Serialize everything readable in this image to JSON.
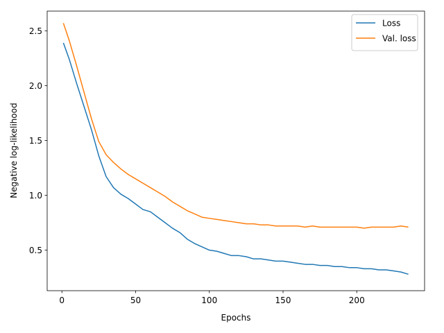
{
  "chart_data": {
    "type": "line",
    "title": "",
    "xlabel": "Epochs",
    "ylabel": "Negative log-likelihood",
    "xlim": [
      -10,
      246
    ],
    "ylim": [
      0.13,
      2.68
    ],
    "xticks": [
      0,
      50,
      100,
      150,
      200
    ],
    "yticks": [
      0.5,
      1.0,
      1.5,
      2.0,
      2.5
    ],
    "xtick_labels": [
      "0",
      "50",
      "100",
      "150",
      "200"
    ],
    "ytick_labels": [
      "0.5",
      "1.0",
      "1.5",
      "2.0",
      "2.5"
    ],
    "grid": false,
    "legend_position": "top-right",
    "series": [
      {
        "name": "Loss",
        "color": "#1f77b4",
        "x": [
          1,
          5,
          10,
          15,
          20,
          25,
          30,
          35,
          40,
          45,
          50,
          55,
          60,
          65,
          70,
          75,
          80,
          85,
          90,
          95,
          100,
          105,
          110,
          115,
          120,
          125,
          130,
          135,
          140,
          145,
          150,
          155,
          160,
          165,
          170,
          175,
          180,
          185,
          190,
          195,
          200,
          205,
          210,
          215,
          220,
          225,
          230,
          235
        ],
        "y": [
          2.39,
          2.24,
          2.02,
          1.81,
          1.6,
          1.36,
          1.17,
          1.07,
          1.01,
          0.97,
          0.92,
          0.87,
          0.85,
          0.8,
          0.75,
          0.7,
          0.66,
          0.6,
          0.56,
          0.53,
          0.5,
          0.49,
          0.47,
          0.45,
          0.45,
          0.44,
          0.42,
          0.42,
          0.41,
          0.4,
          0.4,
          0.39,
          0.38,
          0.37,
          0.37,
          0.36,
          0.36,
          0.35,
          0.35,
          0.34,
          0.34,
          0.33,
          0.33,
          0.32,
          0.32,
          0.31,
          0.3,
          0.28
        ]
      },
      {
        "name": "Val. loss",
        "color": "#ff7f0e",
        "x": [
          1,
          5,
          10,
          15,
          20,
          25,
          30,
          35,
          40,
          45,
          50,
          55,
          60,
          65,
          70,
          75,
          80,
          85,
          90,
          95,
          100,
          105,
          110,
          115,
          120,
          125,
          130,
          135,
          140,
          145,
          150,
          155,
          160,
          165,
          170,
          175,
          180,
          185,
          190,
          195,
          200,
          205,
          210,
          215,
          220,
          225,
          230,
          235
        ],
        "y": [
          2.57,
          2.41,
          2.18,
          1.94,
          1.7,
          1.49,
          1.37,
          1.3,
          1.24,
          1.19,
          1.15,
          1.11,
          1.07,
          1.03,
          0.99,
          0.94,
          0.9,
          0.86,
          0.83,
          0.8,
          0.79,
          0.78,
          0.77,
          0.76,
          0.75,
          0.74,
          0.74,
          0.73,
          0.73,
          0.72,
          0.72,
          0.72,
          0.72,
          0.71,
          0.72,
          0.71,
          0.71,
          0.71,
          0.71,
          0.71,
          0.71,
          0.7,
          0.71,
          0.71,
          0.71,
          0.71,
          0.72,
          0.71
        ]
      }
    ]
  }
}
